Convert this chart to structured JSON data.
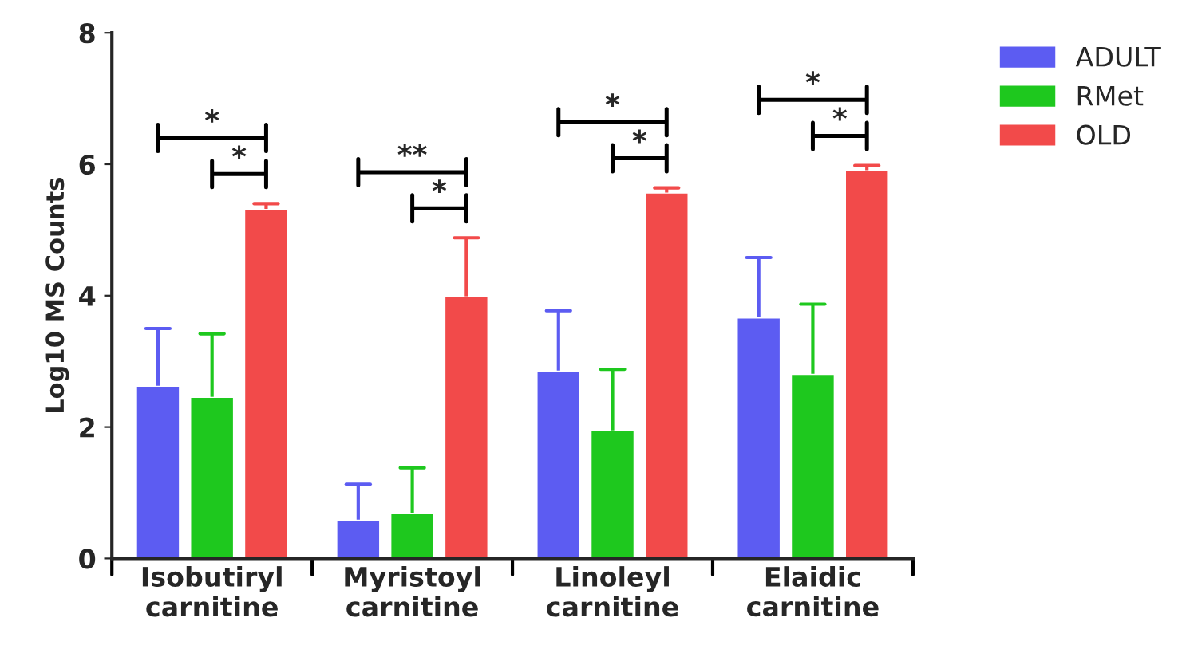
{
  "chart_data": {
    "type": "bar",
    "ylabel": "Log10 MS Counts",
    "categories": [
      "Isobutiryl\ncarnitine",
      "Myristoyl\ncarnitine",
      "Linoleyl\ncarnitine",
      "Elaidic\ncarnitine"
    ],
    "series": [
      {
        "name": "ADULT",
        "color": "#5c5cf2",
        "values": [
          2.63,
          0.59,
          2.86,
          3.67
        ],
        "errors": [
          [
            2.63,
            3.5
          ],
          [
            0.59,
            1.13
          ],
          [
            2.86,
            3.77
          ],
          [
            3.67,
            4.58
          ]
        ]
      },
      {
        "name": "RMet",
        "color": "#1ec81e",
        "values": [
          2.46,
          0.69,
          1.95,
          2.81
        ],
        "errors": [
          [
            2.46,
            3.42
          ],
          [
            0.69,
            1.38
          ],
          [
            1.95,
            2.88
          ],
          [
            2.81,
            3.87
          ]
        ]
      },
      {
        "name": "OLD",
        "color": "#f24a4a",
        "values": [
          5.32,
          3.99,
          5.57,
          5.91
        ],
        "errors": [
          [
            5.32,
            5.4
          ],
          [
            3.99,
            4.88
          ],
          [
            5.57,
            5.64
          ],
          [
            5.91,
            5.98
          ]
        ]
      }
    ],
    "ylim": [
      0,
      8
    ],
    "yticks": [
      0,
      2,
      4,
      6,
      8
    ],
    "legend": "top right",
    "grid": false,
    "annotations": [
      "*",
      "*",
      "**",
      "*",
      "*",
      "*",
      "*",
      "*"
    ]
  }
}
